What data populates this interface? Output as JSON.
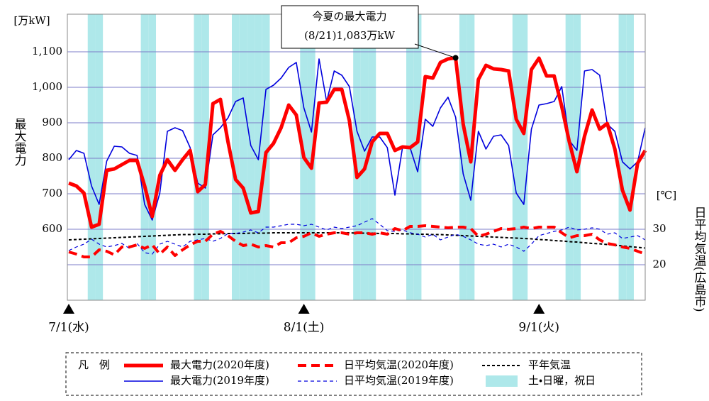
{
  "chart_data": {
    "type": "line",
    "unit_label": "[万kW]",
    "ylabel": "最大電力",
    "y2_unit_label": "[℃]",
    "y2label": "日平均気温(広島市)",
    "categories": [
      "7/1(水)",
      null,
      null,
      null,
      null,
      null,
      null,
      null,
      null,
      null,
      null,
      null,
      null,
      null,
      null,
      null,
      null,
      null,
      null,
      null,
      null,
      null,
      null,
      null,
      null,
      null,
      null,
      null,
      null,
      null,
      null,
      "8/1(土)",
      null,
      null,
      null,
      null,
      null,
      null,
      null,
      null,
      null,
      null,
      null,
      null,
      null,
      null,
      null,
      null,
      null,
      null,
      null,
      null,
      null,
      null,
      null,
      null,
      null,
      null,
      null,
      null,
      null,
      null,
      "9/1(火)",
      null,
      null,
      null,
      null,
      null,
      null,
      null,
      null,
      null,
      null,
      null,
      null,
      null,
      null
    ],
    "ylim": [
      400,
      1200
    ],
    "yticks": [
      600,
      700,
      800,
      900,
      {
        "value": 1000,
        "label": "1,000"
      },
      {
        "value": 1100,
        "label": "1,100"
      }
    ],
    "y2lim": [
      10,
      90
    ],
    "y2ticks": [
      20,
      30
    ],
    "grid": true,
    "series": [
      {
        "name": "最大電力(2020年度)",
        "color": "#ff0000",
        "style": "solid",
        "width": 5,
        "axis": "y",
        "values": [
          730,
          722,
          702,
          606,
          614,
          766,
          770,
          782,
          794,
          794,
          722,
          636,
          752,
          796,
          766,
          796,
          822,
          706,
          726,
          954,
          966,
          846,
          740,
          716,
          646,
          650,
          816,
          842,
          886,
          950,
          922,
          802,
          772,
          956,
          958,
          994,
          994,
          906,
          746,
          770,
          846,
          870,
          870,
          822,
          832,
          830,
          846,
          1030,
          1026,
          1070,
          1080,
          1083,
          896,
          790,
          1022,
          1062,
          1052,
          1050,
          1046,
          910,
          870,
          1050,
          1082,
          1032,
          1032,
          946,
          846,
          762,
          862,
          936,
          882,
          898,
          826,
          710,
          654,
          786,
          822
        ]
      },
      {
        "name": "最大電力(2019年度)",
        "color": "#0000dd",
        "style": "solid",
        "width": 1.6,
        "axis": "y",
        "values": [
          796,
          822,
          814,
          722,
          670,
          792,
          834,
          832,
          814,
          808,
          670,
          626,
          702,
          876,
          886,
          878,
          830,
          730,
          716,
          866,
          886,
          914,
          960,
          970,
          836,
          796,
          994,
          1006,
          1026,
          1056,
          1070,
          942,
          874,
          1080,
          960,
          1046,
          1034,
          1002,
          876,
          820,
          860,
          860,
          830,
          696,
          830,
          830,
          762,
          910,
          890,
          942,
          972,
          916,
          756,
          682,
          876,
          826,
          862,
          866,
          836,
          702,
          670,
          882,
          950,
          954,
          960,
          1002,
          850,
          822,
          1046,
          1050,
          1034,
          896,
          876,
          790,
          770,
          790,
          886
        ]
      },
      {
        "name": "日平均気温(2020年度)",
        "color": "#ff0000",
        "style": "dashed",
        "width": 4,
        "axis": "y2",
        "values": [
          23.6,
          23,
          22.2,
          22.2,
          24.2,
          23.8,
          22.8,
          25,
          25,
          25.6,
          24.6,
          25.6,
          23,
          25,
          22.6,
          24.2,
          25.6,
          26.6,
          26.6,
          28.6,
          29.4,
          28.2,
          26.6,
          25.4,
          25.8,
          25,
          25.4,
          25,
          26.2,
          26.2,
          27.6,
          28,
          29,
          28,
          28.6,
          29,
          29,
          28.6,
          29,
          29,
          28.6,
          29,
          28.6,
          30.2,
          29.6,
          30.8,
          30.8,
          31,
          30.8,
          30.6,
          30.4,
          30.6,
          30.6,
          30.2,
          28,
          28.6,
          29.4,
          30.2,
          30,
          30.2,
          30.6,
          30.2,
          30.6,
          30.6,
          30.6,
          29,
          27.6,
          28.2,
          28.2,
          28.6,
          27,
          26,
          25.6,
          25,
          24.6,
          23.8,
          23
        ]
      },
      {
        "name": "日平均気温(2019年度)",
        "color": "#0000dd",
        "style": "dashed",
        "width": 1.2,
        "axis": "y2",
        "values": [
          24,
          25,
          25.8,
          27.2,
          25.8,
          25,
          25.4,
          26,
          24.6,
          26,
          23.4,
          23,
          25.8,
          26.6,
          25.8,
          25,
          26.6,
          27,
          27.4,
          26.6,
          27.4,
          28.8,
          28.8,
          29.2,
          29.8,
          29,
          30.6,
          30.6,
          31,
          31.4,
          31.4,
          31,
          31.4,
          30.6,
          29.8,
          30.6,
          30.2,
          30.6,
          31,
          32,
          33,
          31.4,
          29.6,
          29.4,
          29.8,
          29,
          28.6,
          27.8,
          28.6,
          27,
          27.8,
          28.6,
          28,
          27,
          25.8,
          25.4,
          25.8,
          25,
          25.8,
          25,
          23.8,
          25.8,
          28.2,
          28.8,
          29.4,
          29.8,
          30.6,
          29.8,
          30,
          30.4,
          30,
          28.6,
          29,
          27.4,
          27.8,
          28.2,
          27
        ]
      },
      {
        "name": "平年気温",
        "color": "#000000",
        "style": "dotted",
        "width": 2,
        "axis": "y2",
        "values": [
          27.0,
          27.1,
          27.2,
          27.3,
          27.4,
          27.5,
          27.6,
          27.7,
          27.8,
          27.9,
          28.0,
          28.1,
          28.2,
          28.3,
          28.4,
          28.5,
          28.5,
          28.6,
          28.6,
          28.7,
          28.7,
          28.8,
          28.8,
          28.8,
          28.9,
          28.9,
          28.9,
          29.0,
          29.0,
          29.0,
          29.0,
          29.0,
          29.0,
          29.0,
          29.0,
          29.0,
          29.0,
          29.0,
          28.9,
          28.9,
          28.9,
          28.8,
          28.8,
          28.8,
          28.7,
          28.7,
          28.6,
          28.6,
          28.5,
          28.5,
          28.4,
          28.3,
          28.2,
          28.1,
          28.0,
          27.9,
          27.8,
          27.7,
          27.6,
          27.5,
          27.4,
          27.3,
          27.1,
          27.0,
          26.8,
          26.7,
          26.5,
          26.4,
          26.2,
          26.0,
          25.9,
          25.7,
          25.5,
          25.3,
          25.1,
          24.9,
          24.7
        ]
      }
    ],
    "shading": {
      "name": "土・日曜，祝日",
      "color": "#aee8ea",
      "days": [
        3,
        4,
        10,
        11,
        17,
        18,
        22,
        23,
        24,
        25,
        26,
        31,
        32,
        38,
        39,
        40,
        45,
        46,
        52,
        53,
        59,
        60,
        66,
        67,
        73,
        74
      ]
    },
    "annotation": [
      "今夏の最大電力",
      "(8/21)1,083万kW"
    ],
    "legend_title": "凡　例",
    "legend": "bottom"
  }
}
